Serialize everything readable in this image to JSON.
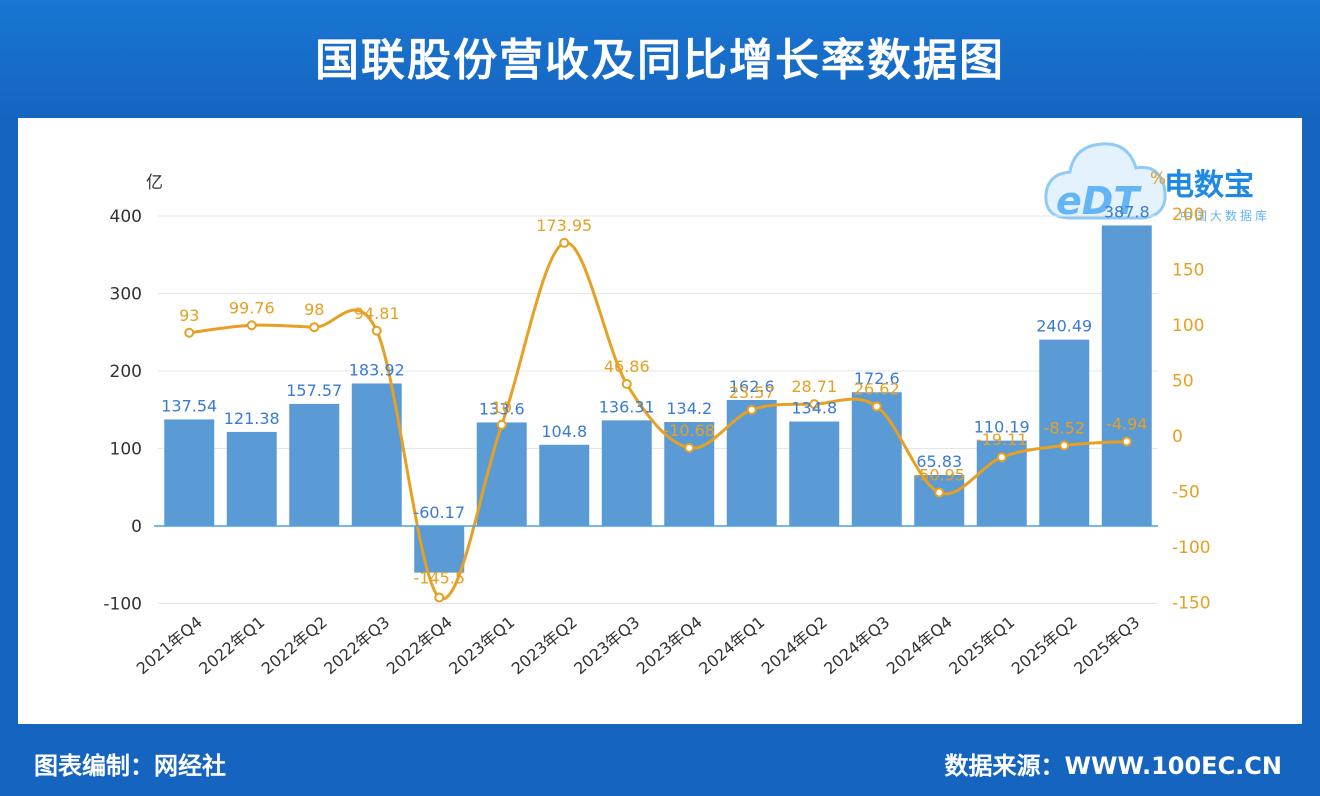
{
  "header": {
    "title": "国联股份营收及同比增长率数据图"
  },
  "footer": {
    "left": "图表编制：网经社",
    "right": "数据来源：WWW.100EC.CN"
  },
  "watermark": {
    "brand": "电数宝",
    "sub": "中国大数据库",
    "letters": "eDT"
  },
  "colors": {
    "bar": "#5b9bd5",
    "line": "#e6a023",
    "header": "#1565c0"
  },
  "chart_data": {
    "type": "bar",
    "title": "国联股份营收及同比增长率数据图",
    "categories": [
      "2021年Q4",
      "2022年Q1",
      "2022年Q2",
      "2022年Q3",
      "2022年Q4",
      "2023年Q1",
      "2023年Q2",
      "2023年Q3",
      "2023年Q4",
      "2024年Q1",
      "2024年Q2",
      "2024年Q3",
      "2024年Q4",
      "2025年Q1",
      "2025年Q2",
      "2025年Q3"
    ],
    "series": [
      {
        "name": "营收",
        "type": "bar",
        "axis": "left",
        "values": [
          137.54,
          121.38,
          157.57,
          183.92,
          -60.17,
          133.6,
          104.8,
          136.31,
          134.2,
          162.6,
          134.8,
          172.6,
          65.83,
          110.19,
          240.49,
          387.8
        ],
        "labels": [
          "137.54",
          "121.38",
          "157.57",
          "183.92",
          "-60.17",
          "133.6",
          "104.8",
          "136.31",
          "134.2",
          "162.6",
          "134.8",
          "172.6",
          "65.83",
          "110.19",
          "240.49",
          "387.8"
        ]
      },
      {
        "name": "同比增长率",
        "type": "line",
        "axis": "right",
        "values": [
          93,
          99.76,
          98,
          94.81,
          -145.5,
          10,
          173.95,
          46.86,
          -10.68,
          23.57,
          28.71,
          26.62,
          -50.95,
          -19.11,
          -8.52,
          -4.94
        ],
        "labels": [
          "93",
          "99.76",
          "98",
          "94.81",
          "-145.5",
          "10",
          "173.95",
          "46.86",
          "-10.68",
          "23.57",
          "28.71",
          "26.62",
          "-50.95",
          "-19.11",
          "-8.52",
          "-4.94"
        ]
      }
    ],
    "ylabel_left": "亿",
    "ylabel_right": "%",
    "ylim_left": [
      -100,
      400
    ],
    "yticks_left": [
      -100,
      0,
      100,
      200,
      300,
      400
    ],
    "ylim_right": [
      -150,
      200
    ],
    "yticks_right": [
      -150,
      -100,
      -50,
      0,
      50,
      100,
      150,
      200
    ],
    "grid": true
  }
}
